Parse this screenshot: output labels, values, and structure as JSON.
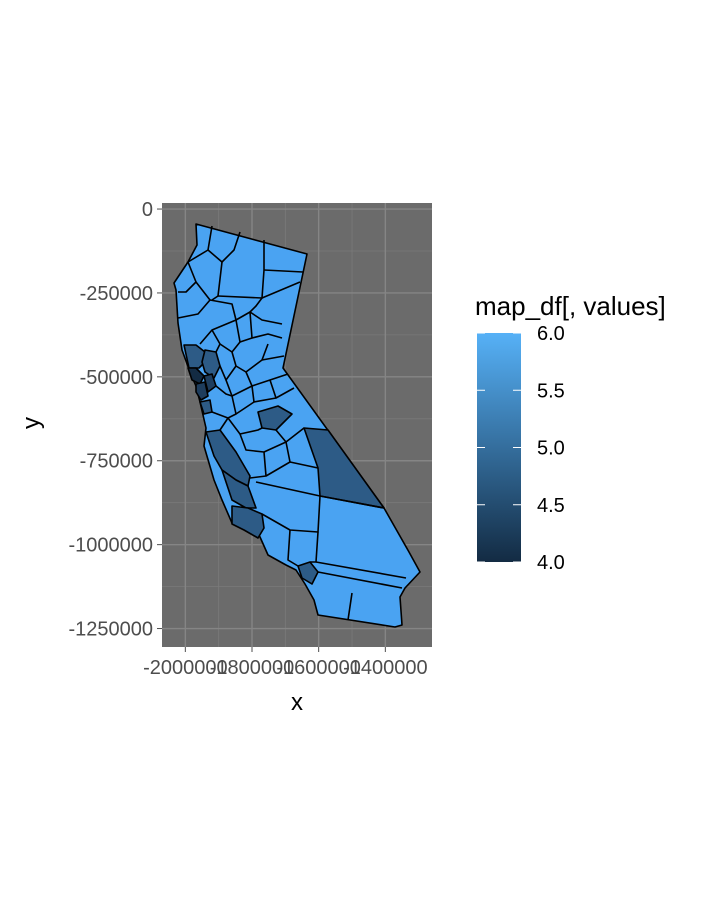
{
  "chart_data": {
    "type": "choropleth",
    "title": "",
    "xlabel": "x",
    "ylabel": "y",
    "xlim": [
      -2070000,
      -1260000
    ],
    "ylim": [
      -1305000,
      18000
    ],
    "x_ticks": [
      -2000000,
      -1800000,
      -1600000,
      -1400000
    ],
    "x_tick_labels": [
      "-2000000",
      "-1800000",
      "-1600000",
      "-1400000"
    ],
    "y_ticks": [
      0,
      -250000,
      -500000,
      -750000,
      -1000000,
      -1250000
    ],
    "y_tick_labels": [
      "0",
      "-250000",
      "-500000",
      "-750000",
      "-1000000",
      "-1250000"
    ],
    "grid": true,
    "panel_background": "#6b6b6b",
    "legend": {
      "title": "map_df[, values]",
      "placement": "right",
      "min": 4.0,
      "max": 6.0,
      "ticks": [
        6.0,
        5.5,
        5.0,
        4.5,
        4.0
      ],
      "tick_labels": [
        "6.0",
        "5.5",
        "5.0",
        "4.5",
        "4.0"
      ],
      "low_color": "#132b43",
      "high_color": "#56b1f7"
    },
    "colors": {
      "value_6": "#4aa3f2",
      "value_5": "#2d5b86",
      "value_4": "#132b43"
    }
  }
}
